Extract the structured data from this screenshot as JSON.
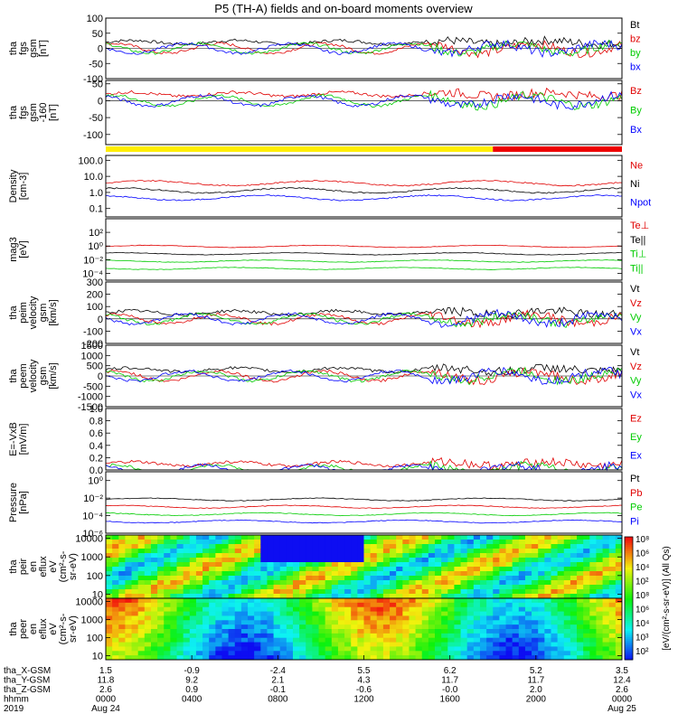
{
  "title": "P5 (TH-A) fields and on-board moments overview",
  "chart_data": [
    {
      "id": "fgs_gsm",
      "type": "line",
      "ylabel": [
        "tha",
        "fgs",
        "gsm",
        "[nT]"
      ],
      "ylim": [
        -100,
        100
      ],
      "ticks": [
        -100,
        -50,
        0,
        50,
        100
      ],
      "series": [
        {
          "name": "Bt",
          "color": "#000000"
        },
        {
          "name": "bz",
          "color": "#e00000"
        },
        {
          "name": "by",
          "color": "#00cc00"
        },
        {
          "name": "bx",
          "color": "#0000ff"
        }
      ]
    },
    {
      "id": "fgs_gse",
      "type": "line",
      "ylabel": [
        "tha",
        "fgs",
        "gsm",
        "-160",
        "[nT]"
      ],
      "ylim": [
        -130,
        60
      ],
      "ticks": [
        -100,
        -50,
        0,
        50
      ],
      "series": [
        {
          "name": "Bz",
          "color": "#e00000"
        },
        {
          "name": "By",
          "color": "#00cc00"
        },
        {
          "name": "Bx",
          "color": "#0000ff"
        }
      ]
    },
    {
      "id": "density",
      "type": "line",
      "yscale": "log",
      "ylabel": [
        "Density",
        "[cm-3]"
      ],
      "ylim": [
        0.03,
        200
      ],
      "ticks": [
        0.1,
        1.0,
        10.0,
        100.0
      ],
      "tick_labels": [
        "0.1",
        "1.0",
        "10.0",
        "100.0"
      ],
      "series": [
        {
          "name": "Ne",
          "color": "#e00000"
        },
        {
          "name": "Ni",
          "color": "#000000"
        },
        {
          "name": "Npot",
          "color": "#0000ff"
        }
      ]
    },
    {
      "id": "temp",
      "type": "line",
      "yscale": "log",
      "ylabel": [
        "mag3",
        "[eV]"
      ],
      "ylim": [
        1e-05,
        10000
      ],
      "ticks": [
        100,
        1,
        0.01,
        0.0001
      ],
      "tick_labels": [
        "10²",
        "10⁰",
        "10⁻²",
        "10⁻⁴"
      ],
      "series": [
        {
          "name": "Te⊥",
          "color": "#e00000"
        },
        {
          "name": "Te||",
          "color": "#000000"
        },
        {
          "name": "Ti⊥",
          "color": "#00cc00"
        },
        {
          "name": "Ti||",
          "color": "#00cc00"
        }
      ]
    },
    {
      "id": "peim_vel",
      "type": "line",
      "ylabel": [
        "tha",
        "peim",
        "velocity",
        "gsm",
        "[km/s]"
      ],
      "ylim": [
        -200,
        300
      ],
      "ticks": [
        -200,
        -100,
        0,
        100,
        200,
        300
      ],
      "series": [
        {
          "name": "Vt",
          "color": "#000000"
        },
        {
          "name": "Vz",
          "color": "#e00000"
        },
        {
          "name": "Vy",
          "color": "#00cc00"
        },
        {
          "name": "Vx",
          "color": "#0000ff"
        }
      ]
    },
    {
      "id": "peem_vel",
      "type": "line",
      "ylabel": [
        "tha",
        "peem",
        "velocity",
        "gsm",
        "[km/s]"
      ],
      "ylim": [
        -1500,
        1500
      ],
      "ticks": [
        -1500,
        -1000,
        -500,
        0,
        500,
        1000,
        1500
      ],
      "series": [
        {
          "name": "Vt",
          "color": "#000000"
        },
        {
          "name": "Vz",
          "color": "#e00000"
        },
        {
          "name": "Vy",
          "color": "#00cc00"
        },
        {
          "name": "Vx",
          "color": "#0000ff"
        }
      ]
    },
    {
      "id": "efield",
      "type": "line",
      "ylabel": [
        "E=-VxB",
        "[mV/m]"
      ],
      "ylim": [
        0,
        1.0
      ],
      "ticks": [
        0.0,
        0.2,
        0.4,
        0.6,
        0.8,
        1.0
      ],
      "tick_labels": [
        "0.0",
        "0.2",
        "0.4",
        "0.6",
        "0.8",
        "1.0"
      ],
      "series": [
        {
          "name": "Ez",
          "color": "#e00000"
        },
        {
          "name": "Ey",
          "color": "#00cc00"
        },
        {
          "name": "Ex",
          "color": "#0000ff"
        }
      ]
    },
    {
      "id": "pressure",
      "type": "line",
      "yscale": "log",
      "ylabel": [
        "Pressure",
        "[nPa]"
      ],
      "ylim": [
        1e-06,
        10
      ],
      "ticks": [
        1,
        0.01,
        0.0001,
        1e-06
      ],
      "tick_labels": [
        "10⁰",
        "10⁻²",
        "10⁻⁴",
        "10⁻⁶"
      ],
      "series": [
        {
          "name": "Pt",
          "color": "#000000"
        },
        {
          "name": "Pb",
          "color": "#e00000"
        },
        {
          "name": "Pe",
          "color": "#00cc00"
        },
        {
          "name": "Pi",
          "color": "#0000ff"
        }
      ]
    },
    {
      "id": "peir_spec",
      "type": "heatmap",
      "yscale": "log",
      "ylabel": [
        "tha",
        "peir",
        "en",
        "eflux",
        "eV",
        "(cm²-s-",
        "sr-eV)"
      ],
      "ylim": [
        6,
        15000
      ],
      "ticks": [
        10,
        100,
        1000,
        10000
      ],
      "tick_labels": [
        "10",
        "100",
        "1000",
        "10000"
      ]
    },
    {
      "id": "peer_spec",
      "type": "heatmap",
      "yscale": "log",
      "ylabel": [
        "tha",
        "peer",
        "en",
        "eflux",
        "eV",
        "(cm²-s-",
        "sr-eV)"
      ],
      "ylim": [
        6,
        15000
      ],
      "ticks": [
        10,
        100,
        1000,
        10000
      ],
      "tick_labels": [
        "10",
        "100",
        "1000",
        "10000"
      ]
    }
  ],
  "colorbar": {
    "title": "[eV/(cm²-s-sr-eV)] (All Qs)",
    "labels": [
      "10⁸",
      "10⁶",
      "10⁴",
      "10²",
      "10⁸",
      "10⁶",
      "10⁴",
      "10³",
      "10²"
    ]
  },
  "x_axis": {
    "rows": [
      {
        "name": "tha_X-GSM",
        "values": [
          "1.5",
          "-0.9",
          "-2.4",
          "5.5",
          "6.2",
          "5.2",
          "3.5"
        ]
      },
      {
        "name": "tha_Y-GSM",
        "values": [
          "11.8",
          "9.2",
          "2.1",
          "4.3",
          "11.7",
          "11.7",
          "12.4"
        ]
      },
      {
        "name": "tha_Z-GSM",
        "values": [
          "2.6",
          "0.9",
          "-0.1",
          "-0.6",
          "-0.0",
          "2.0",
          "2.6"
        ]
      },
      {
        "name": "hhmm",
        "values": [
          "0000",
          "0400",
          "0800",
          "1200",
          "1600",
          "2000",
          "0000"
        ]
      },
      {
        "name": "2019",
        "values": [
          "Aug 24",
          "",
          "",
          "",
          "",
          "",
          "Aug 25"
        ]
      }
    ],
    "tick_hours": [
      0,
      4,
      8,
      12,
      16,
      20,
      24
    ]
  },
  "status_bar": {
    "segments": [
      {
        "from_hour": 0,
        "to_hour": 18.0,
        "color": "#ffee00"
      },
      {
        "from_hour": 18.0,
        "to_hour": 24,
        "color": "#ee0000"
      }
    ]
  }
}
